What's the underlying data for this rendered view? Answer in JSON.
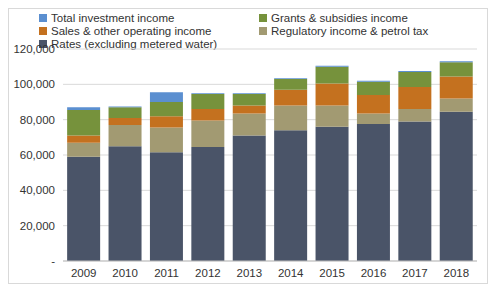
{
  "chart_data": {
    "type": "bar",
    "stacked": true,
    "grid": true,
    "legend": "top",
    "categories": [
      "2009",
      "2010",
      "2011",
      "2012",
      "2013",
      "2014",
      "2015",
      "2016",
      "2017",
      "2018"
    ],
    "series": [
      {
        "name": "Rates (excluding metered water)",
        "color": "#4A5468",
        "values": [
          59000,
          65000,
          61500,
          64500,
          71000,
          74000,
          76000,
          77500,
          79000,
          84500
        ]
      },
      {
        "name": "Regulatory income & petrol tax",
        "color": "#A29A72",
        "values": [
          8000,
          12000,
          14000,
          15000,
          12500,
          14000,
          12000,
          6000,
          7000,
          7500
        ]
      },
      {
        "name": "Sales & other operating income",
        "color": "#C4711F",
        "values": [
          4000,
          4000,
          6500,
          6500,
          4500,
          9000,
          12500,
          10500,
          12500,
          12500
        ]
      },
      {
        "name": "Grants & subsidies income",
        "color": "#76923C",
        "values": [
          14500,
          6000,
          8000,
          8500,
          6500,
          6000,
          9500,
          7500,
          8500,
          8000
        ]
      },
      {
        "name": "Total investment income",
        "color": "#5B8FD0",
        "values": [
          1500,
          500,
          5500,
          500,
          500,
          500,
          500,
          500,
          500,
          500
        ]
      }
    ],
    "ylim": [
      0,
      120000
    ],
    "yticks": [
      {
        "value": 0,
        "label": "-"
      },
      {
        "value": 20000,
        "label": "20,000"
      },
      {
        "value": 40000,
        "label": "40,000"
      },
      {
        "value": 60000,
        "label": "60,000"
      },
      {
        "value": 80000,
        "label": "80,000"
      },
      {
        "value": 100000,
        "label": "100,000"
      },
      {
        "value": 120000,
        "label": "120,000"
      }
    ]
  }
}
